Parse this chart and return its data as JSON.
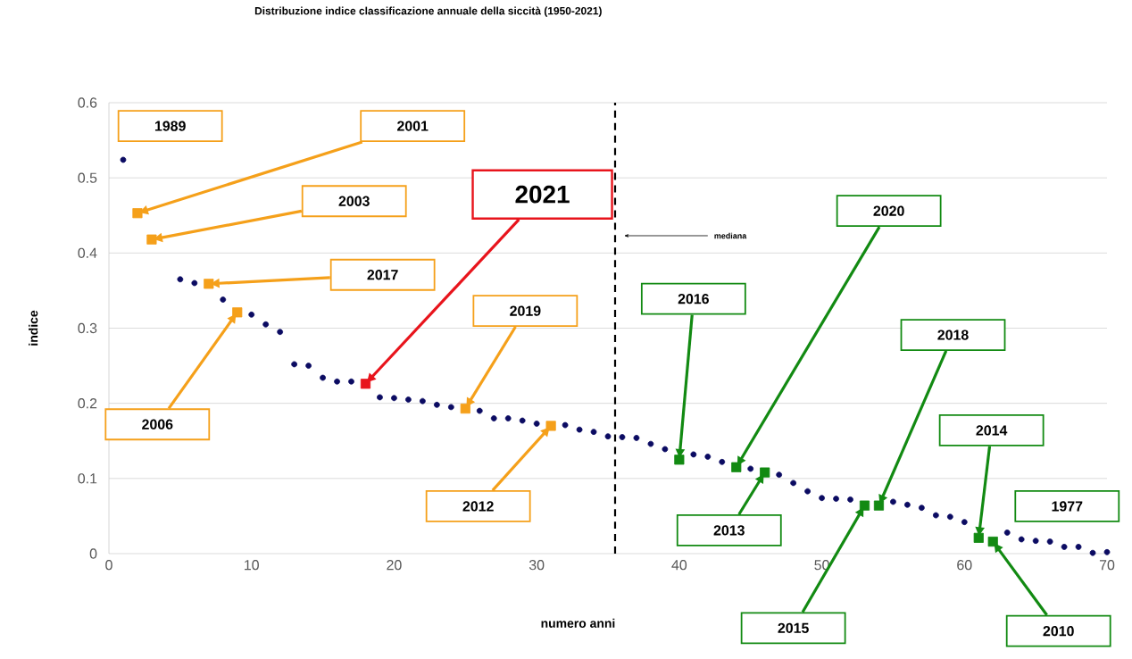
{
  "chart_data": {
    "type": "scatter",
    "title": "Distribuzione indice classificazione annuale della siccità (1950-2021)",
    "xlabel": "numero anni",
    "ylabel": "indice",
    "xlim": [
      0,
      70
    ],
    "ylim": [
      0,
      0.6
    ],
    "xticks": [
      0,
      10,
      20,
      30,
      40,
      50,
      60,
      70
    ],
    "yticks": [
      0,
      0.1,
      0.2,
      0.3,
      0.4,
      0.5,
      0.6
    ],
    "grid": "y",
    "series": [
      {
        "color": "#0b0b62",
        "marker": "circle",
        "x": [
          1,
          5,
          6,
          8,
          10,
          11,
          12,
          13,
          14,
          15,
          16,
          17,
          19,
          20,
          21,
          22,
          23,
          24,
          26,
          27,
          28,
          29,
          30,
          32,
          33,
          34,
          35,
          36,
          37,
          38,
          39,
          41,
          42,
          43,
          45,
          47,
          48,
          49,
          50,
          51,
          52,
          55,
          56,
          57,
          58,
          59,
          60,
          63,
          64,
          65,
          66,
          67,
          68,
          69,
          70
        ],
        "values": [
          0.524,
          0.365,
          0.36,
          0.338,
          0.318,
          0.305,
          0.295,
          0.252,
          0.25,
          0.234,
          0.229,
          0.229,
          0.208,
          0.207,
          0.205,
          0.203,
          0.198,
          0.195,
          0.19,
          0.18,
          0.18,
          0.177,
          0.173,
          0.171,
          0.165,
          0.162,
          0.156,
          0.155,
          0.154,
          0.146,
          0.139,
          0.132,
          0.129,
          0.122,
          0.113,
          0.105,
          0.094,
          0.083,
          0.074,
          0.073,
          0.072,
          0.069,
          0.065,
          0.061,
          0.051,
          0.049,
          0.042,
          0.028,
          0.019,
          0.017,
          0.016,
          0.009,
          0.009,
          0.001,
          0.002
        ]
      },
      {
        "color": "#f5a01a",
        "marker": "square",
        "x": [
          2,
          3,
          7,
          9,
          25,
          31
        ],
        "values": [
          0.453,
          0.418,
          0.359,
          0.321,
          0.193,
          0.17
        ]
      },
      {
        "color": "#e8141c",
        "marker": "square",
        "x": [
          18
        ],
        "values": [
          0.226
        ]
      },
      {
        "color": "#128a12",
        "marker": "square",
        "x": [
          40,
          44,
          46,
          53,
          54,
          61,
          62
        ],
        "values": [
          0.125,
          0.115,
          0.108,
          0.064,
          0.064,
          0.021,
          0.016
        ]
      }
    ],
    "ref_lines": [
      {
        "axis": "x",
        "value": 35.5,
        "label": "mediana",
        "line_style": "dashed",
        "color": "#000000"
      }
    ],
    "annotations": [
      "1989",
      "2001",
      "2003",
      "2017",
      "2006",
      "2021",
      "2019",
      "2012",
      "2016",
      "2020",
      "2013",
      "2015",
      "2018",
      "2014",
      "2010",
      "1977"
    ]
  }
}
